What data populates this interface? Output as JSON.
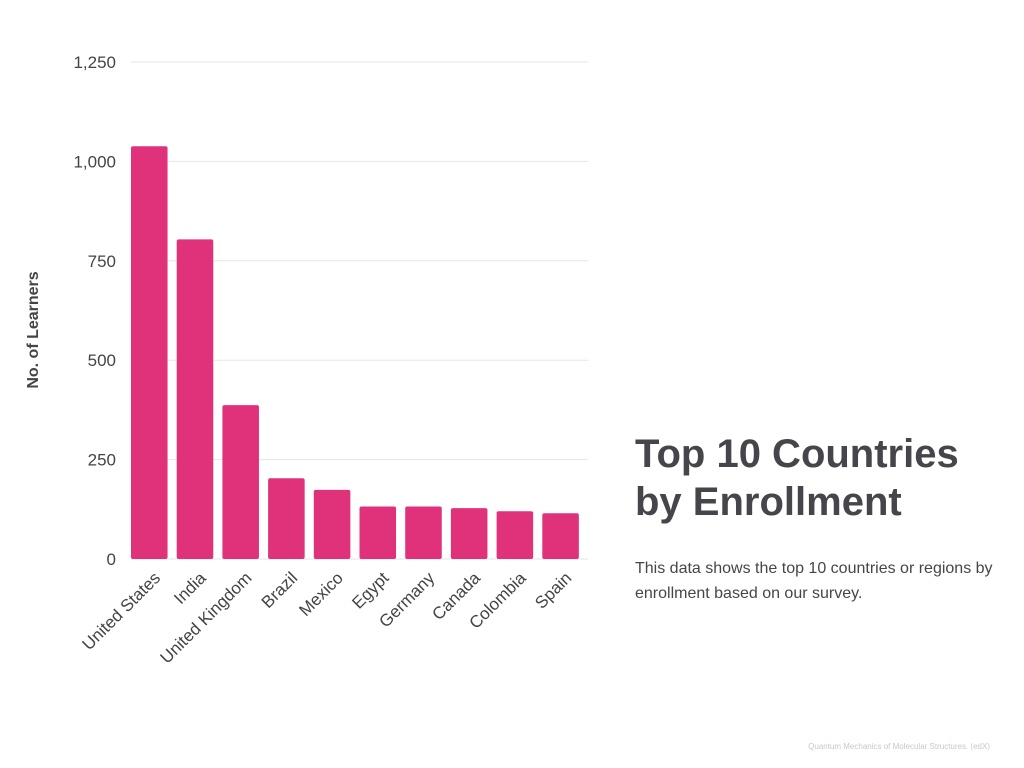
{
  "chart_data": {
    "type": "bar",
    "ylabel": "No. of Learners",
    "xlabel": "",
    "categories": [
      "United States",
      "India",
      "United Kingdom",
      "Brazil",
      "Mexico",
      "Egypt",
      "Germany",
      "Canada",
      "Colombia",
      "Spain"
    ],
    "values": [
      1038,
      804,
      387,
      203,
      174,
      132,
      132,
      128,
      120,
      115
    ],
    "ylim": [
      0,
      1250
    ],
    "yticks": [
      0,
      250,
      500,
      750,
      1000,
      1250
    ],
    "ytick_labels": [
      "0",
      "250",
      "500",
      "750",
      "1,000",
      "1,250"
    ],
    "grid": "horizontal",
    "bar_color": "#e0327a"
  },
  "side_panel": {
    "title": "Top 10 Countries by Enrollment",
    "description": "This data shows the top 10 countries or regions by enrollment based on our survey."
  },
  "footer": {
    "source": "Quantum Mechanics of Molecular Structures. (edX)"
  }
}
